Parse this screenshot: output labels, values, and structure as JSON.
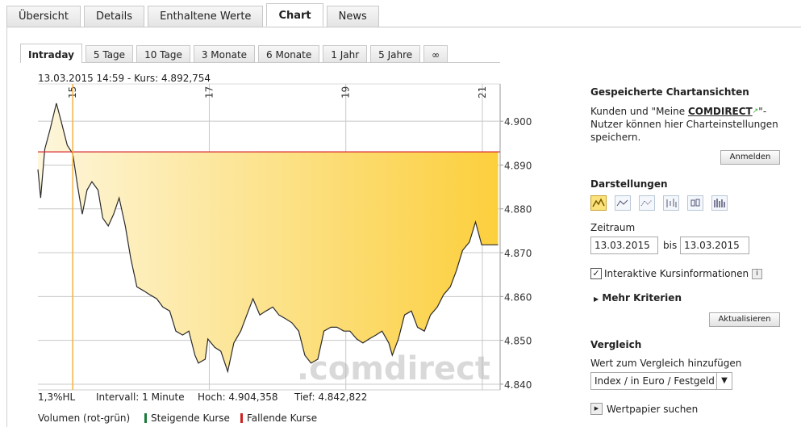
{
  "tabs": [
    "Übersicht",
    "Details",
    "Enthaltene Werte",
    "Chart",
    "News"
  ],
  "range_tabs": [
    "Intraday",
    "5 Tage",
    "10 Tage",
    "3 Monate",
    "6 Monate",
    "1 Jahr",
    "5 Jahre",
    "∞"
  ],
  "chart_data": {
    "type": "area",
    "title": "13.03.2015 14:59  -  Kurs: 4.892,754",
    "x": [
      14.49,
      14.53,
      14.59,
      14.67,
      14.76,
      14.83,
      14.92,
      15.0,
      15.07,
      15.14,
      15.21,
      15.28,
      15.37,
      15.44,
      15.52,
      15.6,
      15.68,
      15.77,
      15.85,
      15.94,
      16.04,
      16.13,
      16.23,
      16.32,
      16.42,
      16.51,
      16.61,
      16.7,
      16.79,
      16.84,
      16.94,
      16.98,
      17.08,
      17.17,
      17.27,
      17.36,
      17.46,
      17.55,
      17.64,
      17.74,
      17.83,
      17.93,
      18.02,
      18.12,
      18.21,
      18.31,
      18.4,
      18.49,
      18.59,
      18.68,
      18.78,
      18.87,
      18.97,
      19.06,
      19.16,
      19.25,
      19.34,
      19.44,
      19.53,
      19.63,
      19.68,
      19.77,
      19.86,
      19.96,
      20.05,
      20.15,
      20.24,
      20.34,
      20.43,
      20.53,
      20.62,
      20.71,
      20.81,
      20.9,
      20.99,
      21.23
    ],
    "values": [
      4889.0,
      4882.5,
      4893.6,
      4898.2,
      4904.1,
      4900.0,
      4894.5,
      4892.6,
      4885.3,
      4878.8,
      4884.3,
      4886.2,
      4884.3,
      4877.9,
      4876.1,
      4878.8,
      4882.5,
      4876.1,
      4868.7,
      4862.2,
      4861.3,
      4860.4,
      4859.5,
      4857.6,
      4856.7,
      4852.1,
      4851.2,
      4852.1,
      4846.6,
      4844.8,
      4845.7,
      4850.3,
      4848.4,
      4847.5,
      4842.9,
      4849.4,
      4852.1,
      4855.8,
      4859.5,
      4855.8,
      4856.7,
      4857.6,
      4855.8,
      4854.9,
      4854.0,
      4852.1,
      4846.6,
      4844.8,
      4845.7,
      4852.1,
      4853.0,
      4853.0,
      4852.1,
      4852.1,
      4850.3,
      4849.4,
      4850.3,
      4851.2,
      4852.1,
      4849.4,
      4846.6,
      4850.3,
      4855.8,
      4856.7,
      4853.0,
      4852.1,
      4855.8,
      4857.6,
      4860.4,
      4862.2,
      4865.9,
      4870.5,
      4872.4,
      4877.0,
      4871.8,
      4871.8
    ],
    "color": "#2b2b2b",
    "fill_colors": [
      "#fdf6dc",
      "#fccf3c"
    ],
    "xlim": [
      14.49,
      21.26
    ],
    "xticks": [
      15,
      17,
      19,
      21
    ],
    "ylim": [
      4838.7,
      4908.5
    ],
    "yticks": [
      {
        "value": 4840,
        "label": "4.840"
      },
      {
        "value": 4850,
        "label": "4.850"
      },
      {
        "value": 4860,
        "label": "4.860"
      },
      {
        "value": 4870,
        "label": "4.870"
      },
      {
        "value": 4880,
        "label": "4.880"
      },
      {
        "value": 4890,
        "label": "4.890"
      },
      {
        "value": 4900,
        "label": "4.900"
      }
    ],
    "grid": true,
    "reference_line": {
      "value": 4893,
      "color": "#d9262c"
    },
    "marker_x": {
      "value": 15,
      "color": "#f5b240"
    },
    "watermark": ".comdirect",
    "stats": [
      "1,3%HL",
      "Intervall: 1 Minute",
      "Hoch: 4.904,358",
      "Tief: 4.842,822"
    ],
    "volume": {
      "label": "Volumen (rot-grün)",
      "legend": [
        {
          "name": "Steigende Kurse",
          "color": "#1a7a3a"
        },
        {
          "name": "Fallende Kurse",
          "color": "#cc2222"
        }
      ]
    }
  },
  "sidebar": {
    "saved": {
      "title": "Gespeicherte Chartansichten",
      "text_before": "Kunden und \"Meine ",
      "brand": "COMDIRECT",
      "text_after": "\"-Nutzer können hier Charteinstellungen speichern.",
      "button": "Anmelden"
    },
    "darstellungen": "Darstellungen",
    "zeitraum": {
      "label": "Zeitraum",
      "from": "13.03.2015",
      "sep": "bis",
      "to": "13.03.2015"
    },
    "checkbox": "Interaktive Kursinformationen",
    "mehr": "Mehr Kriterien",
    "update": "Aktualisieren",
    "vergleich": {
      "title": "Vergleich",
      "label": "Wert zum Vergleich hinzufügen",
      "select": "Index / in Euro / Festgeld",
      "search": "Wertpapier suchen"
    }
  }
}
